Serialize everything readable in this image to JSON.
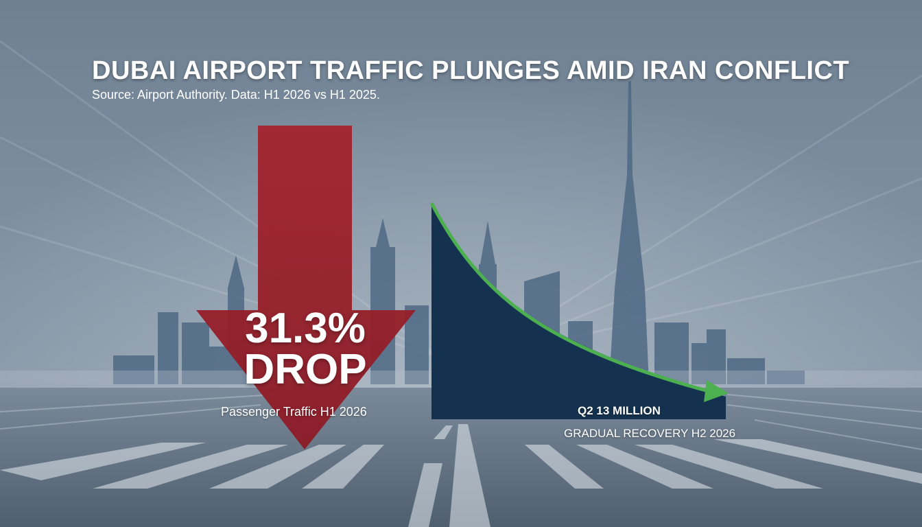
{
  "headline": {
    "title": "DUBAI AIRPORT TRAFFIC PLUNGES AMID IRAN CONFLICT",
    "source": "Source: Airport Authority. Data: H1 2026 vs H1 2025."
  },
  "drop_indicator": {
    "value": "31.3%",
    "word": "DROP",
    "caption": "Passenger Traffic H1 2026",
    "color": "#9b1f2a"
  },
  "trend_panel": {
    "label": "Q2 13 MILLION",
    "caption": "GRADUAL RECOVERY H2 2026",
    "fill_color": "#14324f",
    "curve_color": "#4caf50"
  },
  "scene": {
    "background_top": "#7d8c9c",
    "background_bottom": "#5d6d7e",
    "skyline_color": "#4f6984"
  }
}
